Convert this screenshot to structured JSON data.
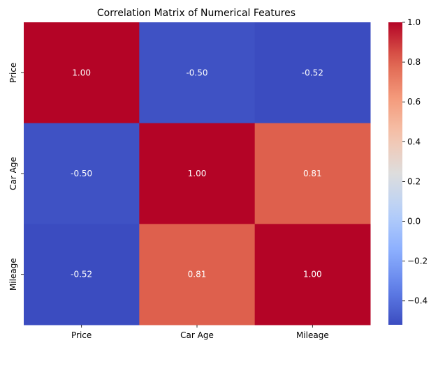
{
  "chart_data": {
    "type": "heatmap",
    "title": "Correlation Matrix of Numerical Features",
    "x_categories": [
      "Price",
      "Car Age",
      "Mileage"
    ],
    "y_categories": [
      "Price",
      "Car Age",
      "Mileage"
    ],
    "values": [
      [
        1.0,
        -0.5,
        -0.52
      ],
      [
        -0.5,
        1.0,
        0.81
      ],
      [
        -0.52,
        0.81,
        1.0
      ]
    ],
    "cell_labels": [
      [
        "1.00",
        "-0.50",
        "-0.52"
      ],
      [
        "-0.50",
        "1.00",
        "0.81"
      ],
      [
        "-0.52",
        "0.81",
        "1.00"
      ]
    ],
    "colormap": "coolwarm",
    "colorbar": {
      "min": -0.52,
      "max": 1.0,
      "ticks": [
        -0.4,
        -0.2,
        0.0,
        0.2,
        0.4,
        0.6,
        0.8,
        1.0
      ],
      "tick_labels": [
        "−0.4",
        "−0.2",
        "0.0",
        "0.2",
        "0.4",
        "0.6",
        "0.8",
        "1.0"
      ]
    },
    "xlabel": "",
    "ylabel": "",
    "grid": false,
    "colors": {
      "low": "#3b4cc0",
      "mid": "#dddddd",
      "high": "#b40426"
    }
  }
}
